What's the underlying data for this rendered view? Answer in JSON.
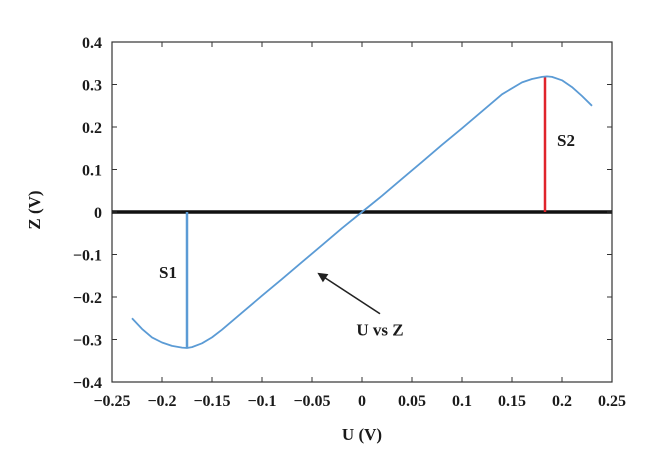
{
  "chart_data": {
    "type": "line",
    "title": "",
    "xlabel": "U (V)",
    "ylabel": "Z (V)",
    "xlim": [
      -0.25,
      0.25
    ],
    "ylim": [
      -0.4,
      0.4
    ],
    "x_ticks": [
      -0.25,
      -0.2,
      -0.15,
      -0.1,
      -0.05,
      0,
      0.05,
      0.1,
      0.15,
      0.2,
      0.25
    ],
    "x_tick_labels": [
      "−0.25",
      "−0.2",
      "−0.15",
      "−0.1",
      "−0.05",
      "0",
      "0.05",
      "0.1",
      "0.15",
      "0.2",
      "0.25"
    ],
    "y_ticks": [
      -0.4,
      -0.3,
      -0.2,
      -0.1,
      0,
      0.1,
      0.2,
      0.3,
      0.4
    ],
    "y_tick_labels": [
      "−0.4",
      "−0.3",
      "−0.2",
      "−0.1",
      "0",
      "0.1",
      "0.2",
      "0.3",
      "0.4"
    ],
    "grid": false,
    "series": [
      {
        "color": "#5b9bd5",
        "x": [
          -0.23,
          -0.22,
          -0.21,
          -0.2,
          -0.19,
          -0.18,
          -0.175,
          -0.17,
          -0.16,
          -0.15,
          -0.14,
          -0.13,
          -0.12,
          -0.1,
          -0.08,
          -0.06,
          -0.04,
          -0.02,
          0,
          0.02,
          0.04,
          0.06,
          0.08,
          0.1,
          0.12,
          0.14,
          0.16,
          0.17,
          0.18,
          0.185,
          0.19,
          0.2,
          0.21,
          0.22,
          0.23
        ],
        "y": [
          -0.25,
          -0.275,
          -0.295,
          -0.307,
          -0.315,
          -0.319,
          -0.32,
          -0.318,
          -0.309,
          -0.295,
          -0.277,
          -0.257,
          -0.237,
          -0.197,
          -0.158,
          -0.118,
          -0.078,
          -0.038,
          0,
          0.038,
          0.078,
          0.118,
          0.158,
          0.197,
          0.237,
          0.277,
          0.305,
          0.313,
          0.318,
          0.319,
          0.318,
          0.31,
          0.294,
          0.273,
          0.25
        ]
      }
    ],
    "reference_line": {
      "y": 0,
      "color": "#111111"
    },
    "markers": [
      {
        "label": "S1",
        "x": -0.175,
        "y_from": 0,
        "y_to": -0.32,
        "color": "#5b9bd5"
      },
      {
        "label": "S2",
        "x": 0.183,
        "y_from": 0,
        "y_to": 0.318,
        "color": "#e0242b"
      }
    ],
    "annotations": [
      {
        "text": "U vs Z",
        "text_x": -0.0,
        "text_y": -0.29,
        "arrow_from": [
          -0.0,
          -0.23
        ],
        "arrow_to": [
          -0.045,
          -0.155
        ]
      }
    ]
  }
}
